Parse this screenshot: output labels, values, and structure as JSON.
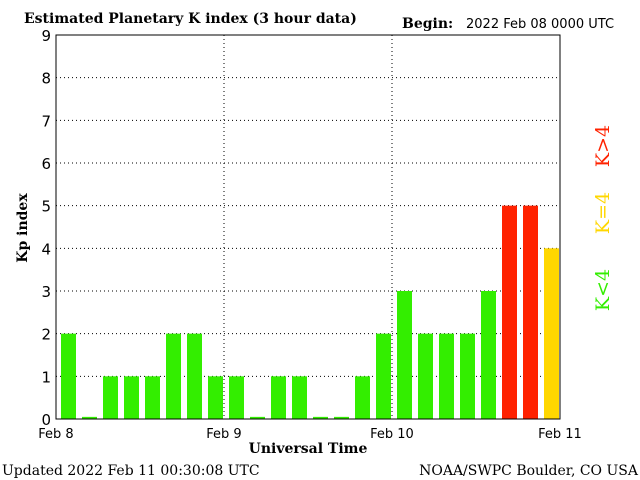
{
  "chart_data": {
    "type": "bar",
    "title": "Estimated Planetary K index (3 hour data)",
    "begin_label": "Begin:",
    "begin_value": "2022 Feb 08 0000 UTC",
    "ylabel": "Kp index",
    "xlabel": "Universal Time",
    "ylim": [
      0,
      9
    ],
    "yticks": [
      "0",
      "1",
      "2",
      "3",
      "4",
      "5",
      "6",
      "7",
      "8",
      "9"
    ],
    "xticks": [
      "Feb 8",
      "Feb 9",
      "Feb 10",
      "Feb 11"
    ],
    "grid": true,
    "values": [
      2,
      0.05,
      1,
      1,
      1,
      2,
      2,
      1,
      1,
      0.05,
      1,
      1,
      0.05,
      0.05,
      1,
      2,
      3,
      2,
      2,
      2,
      3,
      5,
      5,
      4
    ],
    "colors": {
      "low": "#33ee00",
      "equal": "#ffd700",
      "high": "#ff2200"
    },
    "legend": [
      {
        "label": "K<4",
        "level": "low"
      },
      {
        "label": "K=4",
        "level": "equal"
      },
      {
        "label": "K>4",
        "level": "high"
      }
    ],
    "legend_position": "right"
  },
  "footer": {
    "updated": "Updated 2022 Feb 11 00:30:08 UTC",
    "credit": "NOAA/SWPC Boulder, CO USA"
  }
}
